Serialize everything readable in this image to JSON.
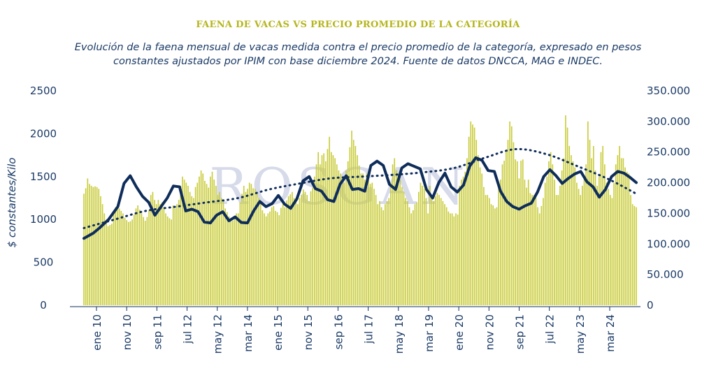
{
  "title": "FAENA DE VACAS VS PRECIO PROMEDIO DE LA CATEGORÍA",
  "subtitle_line1": "Evolución de la faena mensual de vacas medida contra el precio promedio de la categoría, expresado en pesos",
  "subtitle_line2": "constantes ajustados por IPIM con base diciembre 2024. Fuente de datos DNCCA, MAG e INDEC.",
  "watermark": "ROSGAN",
  "colors": {
    "bars": "#c9cc3a",
    "price_line": "#0f2d5a",
    "trend": "#0f2d5a",
    "text": "#1a3a66",
    "title": "#b5b51c"
  },
  "chart_data": {
    "type": "bar",
    "ylabel": "$ constantes/Kilo",
    "y_left_ticks": [
      "0",
      "500",
      "1000",
      "1500",
      "2000",
      "2500"
    ],
    "y_left_range": [
      0,
      2500
    ],
    "y_right_ticks": [
      "0",
      "50.000",
      "100.000",
      "150.000",
      "200.000",
      "250.000",
      "300.000",
      "350.000"
    ],
    "y_right_range": [
      0,
      350000
    ],
    "x_tick_labels": [
      "ene 10",
      "nov 10",
      "sep 11",
      "jul 12",
      "may 12",
      "mar 14",
      "ene 15",
      "nov 15",
      "sep 16",
      "jul 17",
      "may 18",
      "mar 19",
      "ene 20",
      "nov 20",
      "sep 21",
      "jul 22",
      "may 23",
      "mar 24"
    ],
    "grid": false,
    "series": [
      {
        "axis": "right",
        "style": "bars",
        "values": [
          182000,
          191000,
          207000,
          198000,
          195000,
          193000,
          194000,
          193000,
          190000,
          178000,
          165000,
          150000,
          136000,
          129000,
          131000,
          133000,
          148000,
          160000,
          163000,
          158000,
          154000,
          150000,
          143000,
          139000,
          136000,
          137000,
          140000,
          148000,
          158000,
          163000,
          156000,
          150000,
          144000,
          138000,
          144000,
          155000,
          180000,
          185000,
          172000,
          165000,
          172000,
          165000,
          168000,
          160000,
          150000,
          145000,
          142000,
          140000,
          163000,
          158000,
          165000,
          172000,
          195000,
          210000,
          205000,
          200000,
          195000,
          185000,
          178000,
          175000,
          193000,
          200000,
          210000,
          220000,
          215000,
          203000,
          198000,
          192000,
          210000,
          218000,
          205000,
          195000,
          180000,
          185000,
          175000,
          170000,
          158000,
          152000,
          145000,
          140000,
          138000,
          142000,
          150000,
          150000,
          168000,
          182000,
          195000,
          185000,
          190000,
          200000,
          198000,
          191000,
          190000,
          185000,
          175000,
          170000,
          155000,
          150000,
          145000,
          150000,
          153000,
          160000,
          162000,
          154000,
          152000,
          147000,
          159000,
          165000,
          160000,
          171000,
          178000,
          181000,
          185000,
          175000,
          168000,
          165000,
          175000,
          180000,
          189000,
          185000,
          180000,
          170000,
          186000,
          192000,
          210000,
          230000,
          250000,
          230000,
          245000,
          248000,
          235000,
          255000,
          275000,
          250000,
          245000,
          240000,
          230000,
          220000,
          215000,
          201000,
          200000,
          220000,
          235000,
          258000,
          285000,
          270000,
          260000,
          245000,
          228000,
          215000,
          215000,
          205000,
          215000,
          210000,
          198000,
          200000,
          190000,
          180000,
          165000,
          170000,
          160000,
          155000,
          165000,
          170000,
          175000,
          200000,
          230000,
          240000,
          220000,
          215000,
          205000,
          193000,
          185000,
          175000,
          170000,
          160000,
          150000,
          155000,
          165000,
          168000,
          185000,
          200000,
          195000,
          190000,
          175000,
          150000,
          195000,
          176000,
          170000,
          178000,
          183000,
          180000,
          175000,
          170000,
          165000,
          160000,
          153000,
          150000,
          150000,
          145000,
          150000,
          148000,
          195000,
          205000,
          210000,
          218000,
          240000,
          275000,
          300000,
          295000,
          290000,
          270000,
          245000,
          225000,
          215000,
          193000,
          180000,
          180000,
          175000,
          165000,
          163000,
          158000,
          160000,
          202000,
          205000,
          230000,
          236000,
          250000,
          270000,
          300000,
          292000,
          266000,
          238000,
          235000,
          207000,
          236000,
          238000,
          205000,
          192000,
          205000,
          183000,
          180000,
          180000,
          180000,
          160000,
          150000,
          162000,
          175000,
          200000,
          210000,
          235000,
          250000,
          230000,
          205000,
          180000,
          180000,
          195000,
          220000,
          240000,
          310000,
          290000,
          260000,
          245000,
          235000,
          225000,
          200000,
          190000,
          180000,
          195000,
          210000,
          230000,
          300000,
          270000,
          240000,
          260000,
          220000,
          195000,
          210000,
          250000,
          260000,
          230000,
          200000,
          190000,
          180000,
          175000,
          200000,
          230000,
          245000,
          260000,
          240000,
          240000,
          225000,
          218000,
          215000,
          180000,
          165000,
          162000,
          160000
        ]
      },
      {
        "axis": "left",
        "style": "line",
        "x": [
          0,
          3,
          5,
          8,
          11,
          13,
          15,
          17,
          19,
          21,
          23,
          25,
          27,
          29,
          31,
          33,
          35,
          37,
          39,
          41,
          43,
          45,
          47,
          49,
          51,
          53,
          55,
          57,
          59,
          61,
          63,
          65,
          67,
          69,
          71,
          73,
          75,
          77,
          79,
          81,
          83,
          85,
          87,
          89,
          91,
          93,
          95,
          97,
          99,
          101,
          103,
          105,
          107,
          109,
          111,
          113,
          115,
          117,
          119,
          121,
          123,
          125,
          127,
          129,
          131,
          133,
          135,
          137,
          139,
          141,
          143,
          145,
          147,
          149,
          151,
          153,
          155,
          157,
          159,
          161,
          163,
          165,
          167,
          169,
          171,
          173,
          175,
          177,
          179
        ],
        "values": [
          780,
          840,
          900,
          1000,
          1150,
          1420,
          1510,
          1380,
          1270,
          1200,
          1050,
          1150,
          1250,
          1390,
          1380,
          1100,
          1120,
          1090,
          970,
          960,
          1050,
          1090,
          985,
          1030,
          965,
          960,
          1100,
          1210,
          1150,
          1185,
          1280,
          1180,
          1130,
          1240,
          1450,
          1500,
          1360,
          1330,
          1230,
          1210,
          1410,
          1510,
          1350,
          1360,
          1330,
          1630,
          1680,
          1630,
          1410,
          1350,
          1600,
          1650,
          1620,
          1590,
          1350,
          1250,
          1430,
          1540,
          1380,
          1320,
          1400,
          1620,
          1720,
          1690,
          1570,
          1560,
          1330,
          1210,
          1150,
          1120,
          1160,
          1190,
          1320,
          1500,
          1580,
          1510,
          1420,
          1480,
          1530,
          1560,
          1440,
          1380,
          1260,
          1350,
          1500,
          1560,
          1540,
          1490,
          1430
        ]
      },
      {
        "axis": "left",
        "style": "dotted",
        "x": [
          0,
          10,
          20,
          30,
          40,
          50,
          60,
          70,
          80,
          90,
          100,
          110,
          120,
          130,
          140,
          150,
          160,
          170,
          179
        ],
        "values": [
          900,
          1000,
          1100,
          1150,
          1200,
          1250,
          1350,
          1420,
          1480,
          1500,
          1520,
          1550,
          1600,
          1720,
          1820,
          1760,
          1620,
          1470,
          1300
        ]
      }
    ]
  }
}
